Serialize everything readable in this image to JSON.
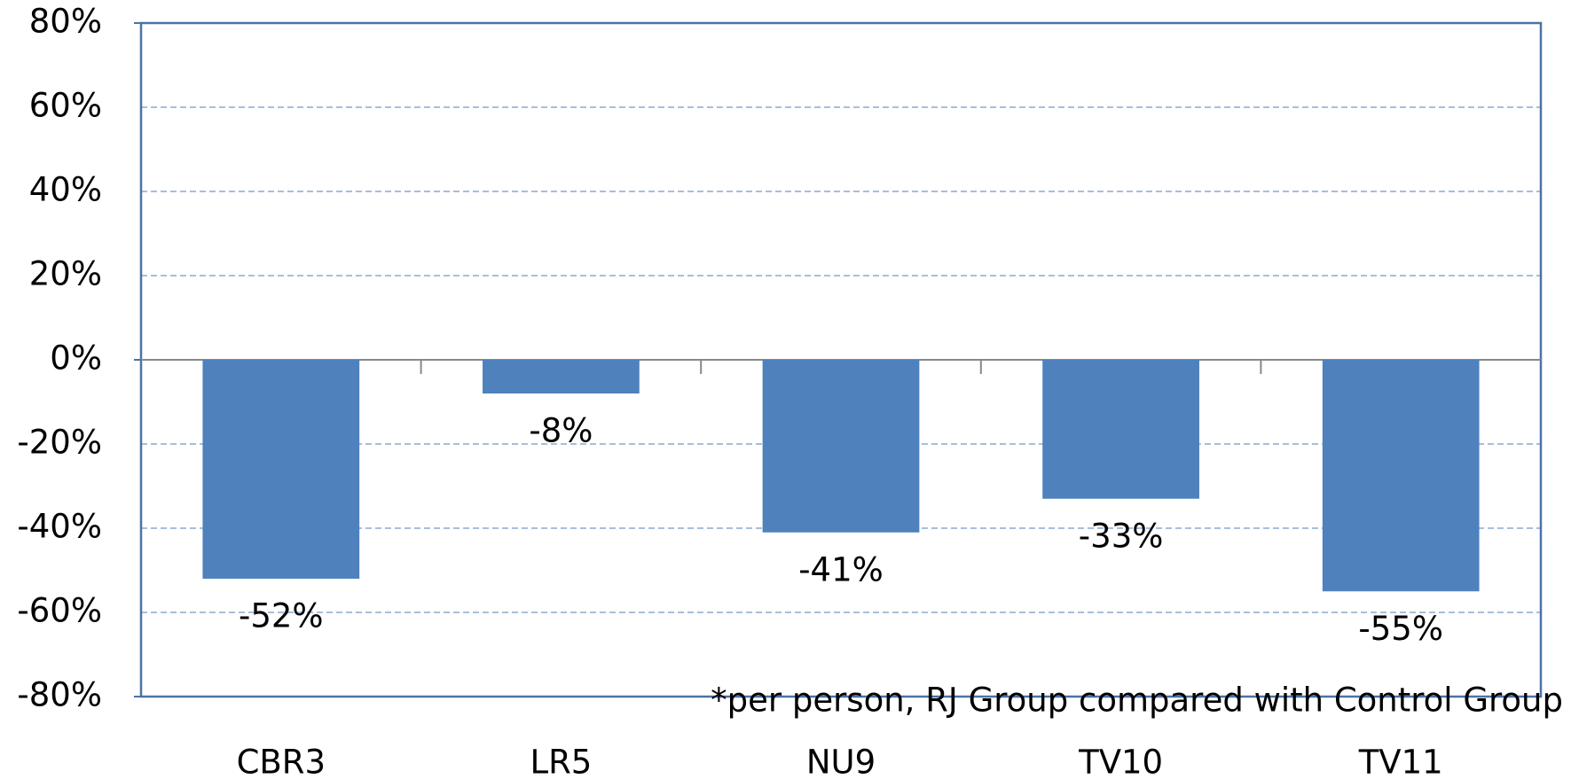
{
  "chart_data": {
    "type": "bar",
    "categories": [
      "CBR3",
      "LR5",
      "NU9",
      "TV10",
      "TV11"
    ],
    "values": [
      -52,
      -8,
      -41,
      -33,
      -55
    ],
    "value_labels": [
      "-52%",
      "-8%",
      "-41%",
      "-33%",
      "-55%"
    ],
    "color": "#4f81bd",
    "ylim": [
      -80,
      80
    ],
    "yticks": [
      {
        "value": -80,
        "label": "-80%"
      },
      {
        "value": -60,
        "label": "-60%"
      },
      {
        "value": -40,
        "label": "-40%"
      },
      {
        "value": -20,
        "label": "-20%"
      },
      {
        "value": 0,
        "label": "0%"
      },
      {
        "value": 20,
        "label": "20%"
      },
      {
        "value": 40,
        "label": "40%"
      },
      {
        "value": 60,
        "label": "60%"
      },
      {
        "value": 80,
        "label": "80%"
      }
    ],
    "grid": true,
    "annotation": "*per person, RJ Group compared with Control Group"
  }
}
